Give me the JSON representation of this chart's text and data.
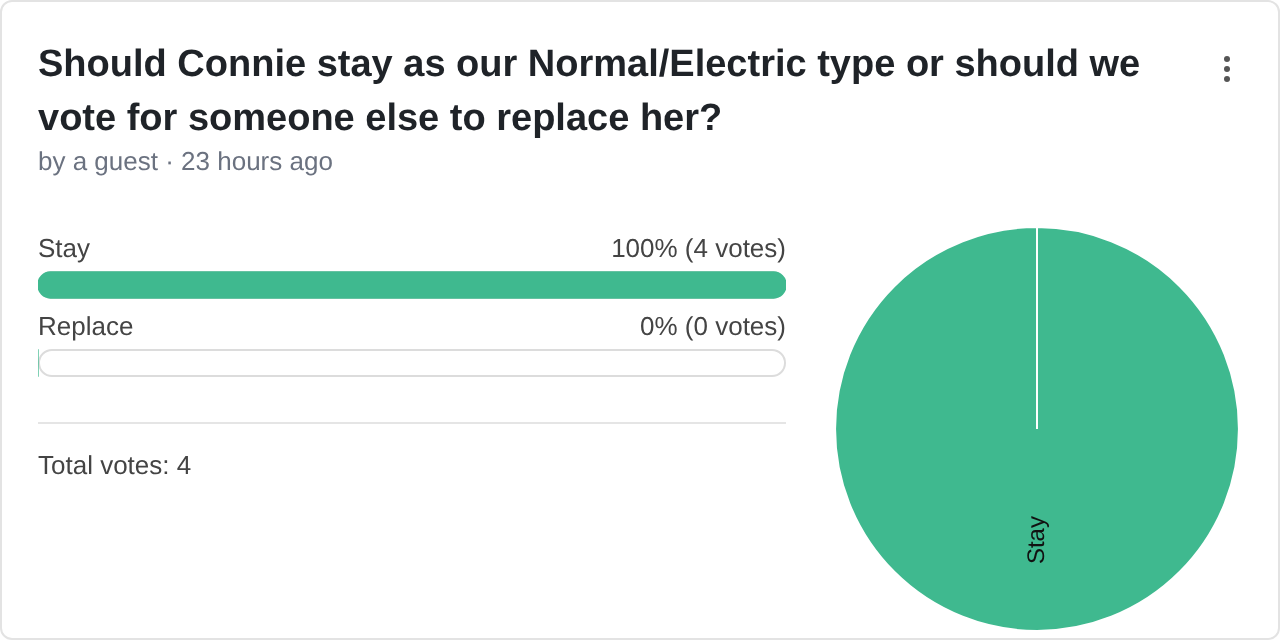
{
  "chart_data": [
    {
      "type": "bar",
      "orientation": "horizontal",
      "title": "Should Connie stay as our Normal/Electric type or should we vote for someone else to replace her?",
      "subtitle": "by a guest · 23 hours ago",
      "categories": [
        "Stay",
        "Replace"
      ],
      "values": [
        100,
        0
      ],
      "value_labels": [
        "100% (4 votes)",
        "0% (0 votes)"
      ],
      "color": "#3fb98f",
      "annotations": [
        "Total votes: 4"
      ],
      "legend": false
    },
    {
      "type": "pie",
      "categories": [
        "Stay",
        null
      ],
      "values": [
        100,
        0
      ],
      "colors": [
        "#3fb98f",
        "#e8e8e8"
      ],
      "legend": false
    }
  ]
}
